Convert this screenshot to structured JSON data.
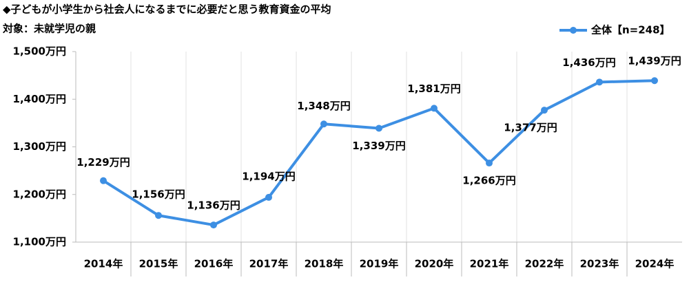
{
  "chart_data": {
    "type": "line",
    "title": "◆子どもが小学生から社会人になるまでに必要だと思う教育資金の平均",
    "subtitle": "対象：未就学児の親",
    "categories": [
      "2014年",
      "2015年",
      "2016年",
      "2017年",
      "2018年",
      "2019年",
      "2020年",
      "2021年",
      "2022年",
      "2023年",
      "2024年"
    ],
    "series": [
      {
        "name": "全体【n=248】",
        "color": "#3d8fe3",
        "values": [
          1229,
          1156,
          1136,
          1194,
          1348,
          1339,
          1381,
          1266,
          1377,
          1436,
          1439
        ],
        "value_labels": [
          "1,229万円",
          "1,156万円",
          "1,136万円",
          "1,194万円",
          "1,348万円",
          "1,339万円",
          "1,381万円",
          "1,266万円",
          "1,377万円",
          "1,436万円",
          "1,439万円"
        ]
      }
    ],
    "ylim": [
      1100,
      1500
    ],
    "yticks": [
      {
        "value": 1100,
        "label": "1,100万円"
      },
      {
        "value": 1200,
        "label": "1,200万円"
      },
      {
        "value": 1300,
        "label": "1,300万円"
      },
      {
        "value": 1400,
        "label": "1,400万円"
      },
      {
        "value": 1500,
        "label": "1,500万円"
      }
    ]
  }
}
